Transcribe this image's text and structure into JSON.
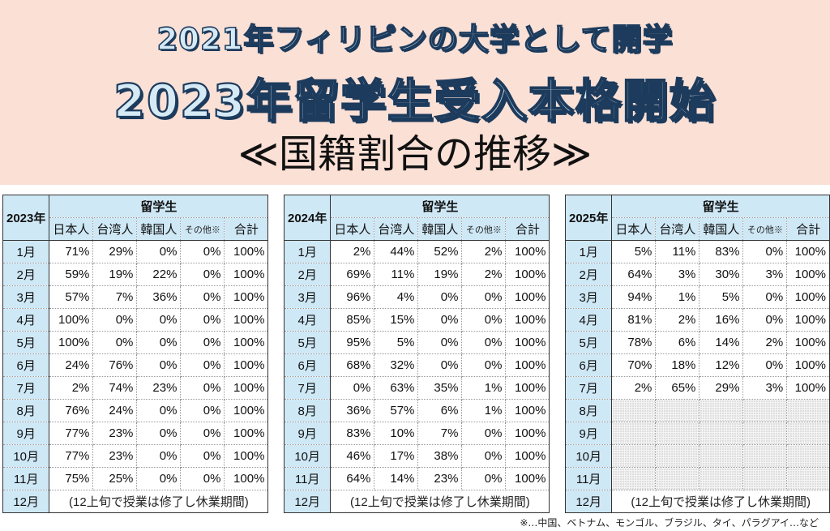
{
  "header": {
    "line1": "2021年フィリピンの大学として開学",
    "line2": "2023年留学生受入本格開始",
    "line3": "≪国籍割合の推移≫"
  },
  "column_group_label": "留学生",
  "columns": [
    "日本人",
    "台湾人",
    "韓国人",
    "その他※",
    "合計"
  ],
  "closing_note": "(12上旬で授業は修了し休業期間)",
  "tables": [
    {
      "year": "2023年",
      "rows": [
        {
          "month": "1月",
          "values": [
            "71%",
            "29%",
            "0%",
            "0%",
            "100%"
          ]
        },
        {
          "month": "2月",
          "values": [
            "59%",
            "19%",
            "22%",
            "0%",
            "100%"
          ]
        },
        {
          "month": "3月",
          "values": [
            "57%",
            "7%",
            "36%",
            "0%",
            "100%"
          ]
        },
        {
          "month": "4月",
          "values": [
            "100%",
            "0%",
            "0%",
            "0%",
            "100%"
          ]
        },
        {
          "month": "5月",
          "values": [
            "100%",
            "0%",
            "0%",
            "0%",
            "100%"
          ]
        },
        {
          "month": "6月",
          "values": [
            "24%",
            "76%",
            "0%",
            "0%",
            "100%"
          ]
        },
        {
          "month": "7月",
          "values": [
            "2%",
            "74%",
            "23%",
            "0%",
            "100%"
          ]
        },
        {
          "month": "8月",
          "values": [
            "76%",
            "24%",
            "0%",
            "0%",
            "100%"
          ]
        },
        {
          "month": "9月",
          "values": [
            "77%",
            "23%",
            "0%",
            "0%",
            "100%"
          ]
        },
        {
          "month": "10月",
          "values": [
            "77%",
            "23%",
            "0%",
            "0%",
            "100%"
          ]
        },
        {
          "month": "11月",
          "values": [
            "75%",
            "25%",
            "0%",
            "0%",
            "100%"
          ]
        }
      ],
      "last_month": "12月"
    },
    {
      "year": "2024年",
      "rows": [
        {
          "month": "1月",
          "values": [
            "2%",
            "44%",
            "52%",
            "2%",
            "100%"
          ]
        },
        {
          "month": "2月",
          "values": [
            "69%",
            "11%",
            "19%",
            "2%",
            "100%"
          ]
        },
        {
          "month": "3月",
          "values": [
            "96%",
            "4%",
            "0%",
            "0%",
            "100%"
          ]
        },
        {
          "month": "4月",
          "values": [
            "85%",
            "15%",
            "0%",
            "0%",
            "100%"
          ]
        },
        {
          "month": "5月",
          "values": [
            "95%",
            "5%",
            "0%",
            "0%",
            "100%"
          ]
        },
        {
          "month": "6月",
          "values": [
            "68%",
            "32%",
            "0%",
            "0%",
            "100%"
          ]
        },
        {
          "month": "7月",
          "values": [
            "0%",
            "63%",
            "35%",
            "1%",
            "100%"
          ]
        },
        {
          "month": "8月",
          "values": [
            "36%",
            "57%",
            "6%",
            "1%",
            "100%"
          ]
        },
        {
          "month": "9月",
          "values": [
            "83%",
            "10%",
            "7%",
            "0%",
            "100%"
          ]
        },
        {
          "month": "10月",
          "values": [
            "46%",
            "17%",
            "38%",
            "0%",
            "100%"
          ]
        },
        {
          "month": "11月",
          "values": [
            "64%",
            "14%",
            "23%",
            "0%",
            "100%"
          ]
        }
      ],
      "last_month": "12月"
    },
    {
      "year": "2025年",
      "rows": [
        {
          "month": "1月",
          "values": [
            "5%",
            "11%",
            "83%",
            "0%",
            "100%"
          ]
        },
        {
          "month": "2月",
          "values": [
            "64%",
            "3%",
            "30%",
            "3%",
            "100%"
          ]
        },
        {
          "month": "3月",
          "values": [
            "94%",
            "1%",
            "5%",
            "0%",
            "100%"
          ]
        },
        {
          "month": "4月",
          "values": [
            "81%",
            "2%",
            "16%",
            "0%",
            "100%"
          ]
        },
        {
          "month": "5月",
          "values": [
            "78%",
            "6%",
            "14%",
            "2%",
            "100%"
          ]
        },
        {
          "month": "6月",
          "values": [
            "70%",
            "18%",
            "12%",
            "0%",
            "100%"
          ]
        },
        {
          "month": "7月",
          "values": [
            "2%",
            "65%",
            "29%",
            "3%",
            "100%"
          ]
        },
        {
          "month": "8月",
          "values": null
        },
        {
          "month": "9月",
          "values": null
        },
        {
          "month": "10月",
          "values": null
        },
        {
          "month": "11月",
          "values": null
        }
      ],
      "last_month": "12月"
    }
  ],
  "footnote": "※…中国、ベトナム、モンゴル、ブラジル、タイ、パラグアイ…など",
  "colors": {
    "banner_bg": "#fbe0d6",
    "header_cell_bg": "#cfe8f6",
    "title_fill": "#d6eaf6",
    "title_outline": "#1d3b5c"
  }
}
